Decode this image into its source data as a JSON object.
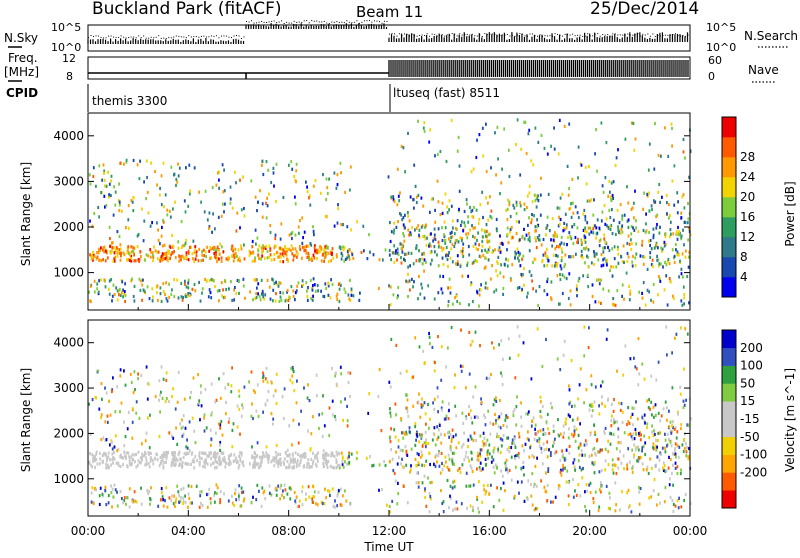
{
  "header": {
    "station": "Buckland Park (fitACF)",
    "beam": "Beam 11",
    "date": "25/Dec/2014"
  },
  "left_labels": {
    "nsky": "N.Sky",
    "freq_line1": "Freq.",
    "freq_line2": "[MHz]",
    "cpid": "CPID"
  },
  "right_labels": {
    "nsearch": "N.Search",
    "nave": "Nave"
  },
  "noise_axis_ticks": [
    "10^5",
    "10^0"
  ],
  "freq_axis_ticks": [
    "12",
    "8"
  ],
  "nave_axis_ticks": [
    "60",
    "0"
  ],
  "cpid_segments": [
    {
      "label": "themis 3300",
      "start_hour": 0
    },
    {
      "label": "ltuseq (fast) 8511",
      "start_hour": 12
    }
  ],
  "colors": {
    "power_scale": [
      "#0000ee",
      "#1848b0",
      "#2e7a8a",
      "#2e9e60",
      "#7ccc3c",
      "#f2d400",
      "#ff9900",
      "#ff5a00",
      "#ee0000"
    ],
    "velocity_scale": [
      "#ee0000",
      "#ff5a00",
      "#ffa500",
      "#f0d000",
      "#c8c8c8",
      "#c8c8c8",
      "#80cc40",
      "#2ea040",
      "#3050c0",
      "#0000cc"
    ]
  },
  "chart_data": [
    {
      "type": "heatmap",
      "panel": "power",
      "xlabel": "",
      "ylabel": "Slant Range [km]",
      "xlim": [
        "00:00",
        "24:00"
      ],
      "ylim": [
        180,
        4500
      ],
      "y_ticks": [
        "1000",
        "2000",
        "3000",
        "4000"
      ],
      "colorbar": {
        "label": "Power [dB]",
        "ticks": [
          "4",
          "8",
          "12",
          "16",
          "20",
          "24",
          "28"
        ],
        "range": [
          0,
          30
        ]
      },
      "features": [
        {
          "start_hour": 0,
          "end_hour": 10,
          "range_km": 1450,
          "value_db": 20
        },
        {
          "start_hour": 12,
          "end_hour": 24,
          "range_km": 1600,
          "value_db": 18
        },
        {
          "start_hour": 12,
          "end_hour": 18,
          "range_km": 2400,
          "value_db": 22
        }
      ]
    },
    {
      "type": "heatmap",
      "panel": "velocity",
      "xlabel": "Time UT",
      "ylabel": "Slant Range [km]",
      "xlim": [
        "00:00",
        "24:00"
      ],
      "ylim": [
        180,
        4500
      ],
      "x_ticks": [
        "00:00",
        "04:00",
        "08:00",
        "12:00",
        "16:00",
        "20:00",
        "00:00"
      ],
      "y_ticks": [
        "1000",
        "2000",
        "3000",
        "4000"
      ],
      "colorbar": {
        "label": "Velocity [m s^-1]",
        "ticks": [
          "200",
          "100",
          "50",
          "15",
          "-15",
          "-50",
          "-100",
          "-200"
        ],
        "range": [
          -250,
          250
        ]
      },
      "features": [
        {
          "start_hour": 0,
          "end_hour": 10,
          "range_km": 1450,
          "value_ms": 0
        },
        {
          "start_hour": 12,
          "end_hour": 24,
          "range_km": 1700,
          "value_ms": 10
        }
      ]
    }
  ]
}
